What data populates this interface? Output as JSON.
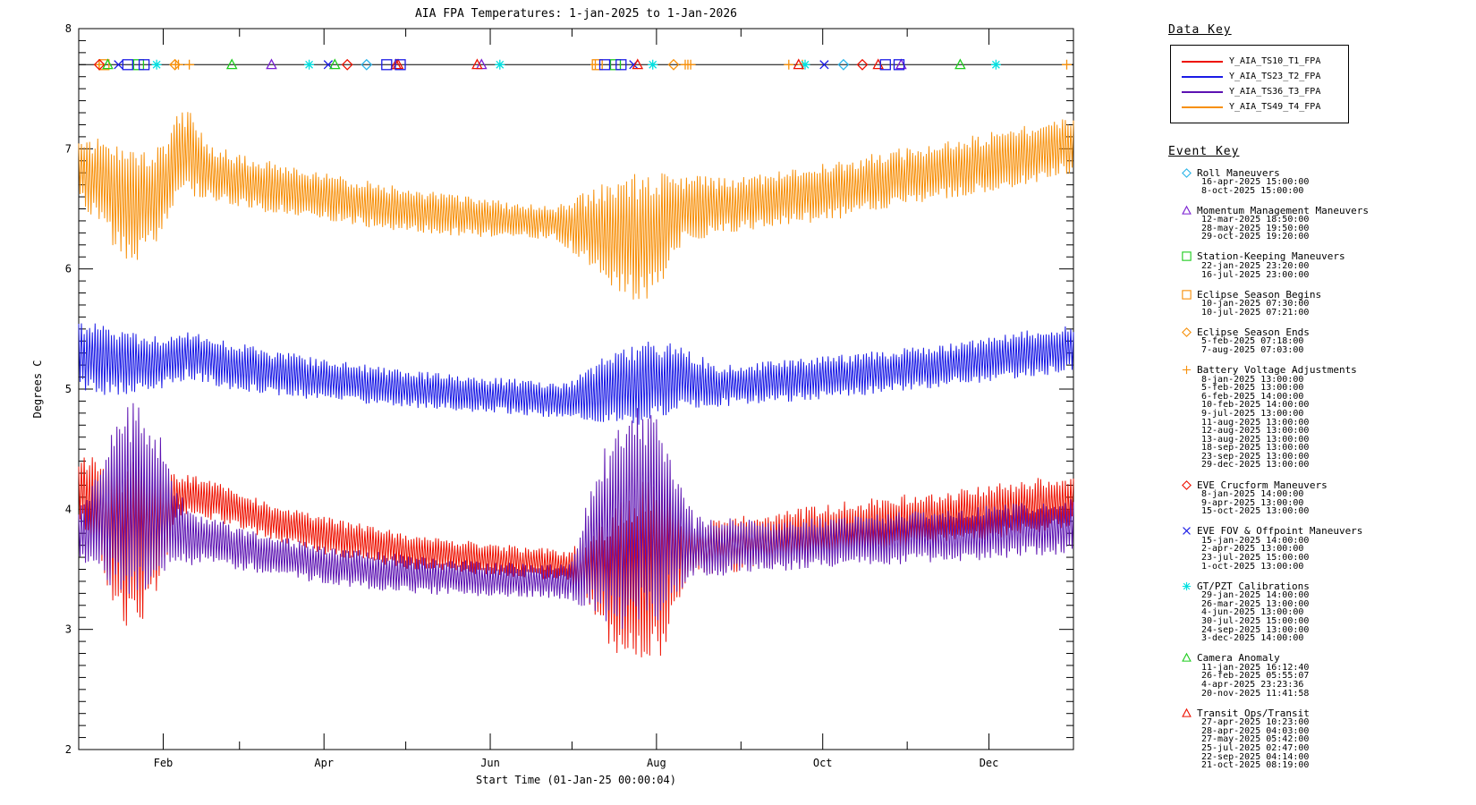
{
  "title": "AIA FPA Temperatures: 1-jan-2025 to 1-Jan-2026",
  "axes": {
    "ylabel": "Degrees C",
    "xlabel": "Start Time (01-Jan-25 00:00:04)",
    "y_ticks": [
      "2",
      "3",
      "4",
      "5",
      "6",
      "7",
      "8"
    ],
    "x_tick_labels": [
      "Feb",
      "Apr",
      "Jun",
      "Aug",
      "Oct",
      "Dec"
    ],
    "ylim": [
      2,
      8
    ]
  },
  "data_key": {
    "title": "Data Key",
    "entries": [
      {
        "label": "Y_AIA_TS10_T1_FPA",
        "color": "#ee1100"
      },
      {
        "label": "Y_AIA_TS23_T2_FPA",
        "color": "#1a1ae6"
      },
      {
        "label": "Y_AIA_TS36_T3_FPA",
        "color": "#5c12b2"
      },
      {
        "label": "Y_AIA_TS49_T4_FPA",
        "color": "#f7900a"
      }
    ]
  },
  "event_key": {
    "title": "Event Key",
    "events": [
      {
        "name": "Roll Maneuvers",
        "symbol": "diamond",
        "color": "#2ab4e8",
        "dates": [
          "16-apr-2025 15:00:00",
          "8-oct-2025 15:00:00"
        ]
      },
      {
        "name": "Momentum Management Maneuvers",
        "symbol": "triangle",
        "color": "#7a1fd2",
        "dates": [
          "12-mar-2025 18:50:00",
          "28-may-2025 19:50:00",
          "29-oct-2025 19:20:00"
        ]
      },
      {
        "name": "Station-Keeping Maneuvers",
        "symbol": "square",
        "color": "#1ecc1e",
        "dates": [
          "22-jan-2025 23:20:00",
          "16-jul-2025 23:00:00"
        ]
      },
      {
        "name": "Eclipse Season Begins",
        "symbol": "square",
        "color": "#f7900a",
        "dates": [
          "10-jan-2025 07:30:00",
          "10-jul-2025 07:21:00"
        ]
      },
      {
        "name": "Eclipse Season Ends",
        "symbol": "diamond",
        "color": "#f7900a",
        "dates": [
          "5-feb-2025 07:18:00",
          "7-aug-2025 07:03:00"
        ]
      },
      {
        "name": "Battery Voltage Adjustments",
        "symbol": "plus",
        "color": "#f7900a",
        "dates": [
          "8-jan-2025 13:00:00",
          "5-feb-2025 13:00:00",
          "6-feb-2025 14:00:00",
          "10-feb-2025 14:00:00",
          "9-jul-2025 13:00:00",
          "11-aug-2025 13:00:00",
          "12-aug-2025 13:00:00",
          "13-aug-2025 13:00:00",
          "18-sep-2025 13:00:00",
          "23-sep-2025 13:00:00",
          "29-dec-2025 13:00:00"
        ]
      },
      {
        "name": "EVE Crucform Maneuvers",
        "symbol": "diamond",
        "color": "#ee1100",
        "dates": [
          "8-jan-2025 14:00:00",
          "9-apr-2025 13:00:00",
          "15-oct-2025 13:00:00"
        ]
      },
      {
        "name": "EVE FOV & Offpoint Maneuvers",
        "symbol": "x",
        "color": "#1a1ae6",
        "dates": [
          "15-jan-2025 14:00:00",
          "2-apr-2025 13:00:00",
          "23-jul-2025 15:00:00",
          "1-oct-2025 13:00:00"
        ]
      },
      {
        "name": "GT/PZT Calibrations",
        "symbol": "asterisk",
        "color": "#00e0e0",
        "dates": [
          "29-jan-2025 14:00:00",
          "26-mar-2025 13:00:00",
          "4-jun-2025 13:00:00",
          "30-jul-2025 15:00:00",
          "24-sep-2025 13:00:00",
          "3-dec-2025 14:00:00"
        ]
      },
      {
        "name": "Camera Anomaly",
        "symbol": "triangle",
        "color": "#1ecc1e",
        "dates": [
          "11-jan-2025 16:12:40",
          "26-feb-2025 05:55:07",
          "4-apr-2025 23:23:36",
          "20-nov-2025 11:41:58"
        ]
      },
      {
        "name": "Transit Ops/Transit",
        "symbol": "triangle",
        "color": "#ee1100",
        "dates": [
          "27-apr-2025 10:23:00",
          "28-apr-2025 04:03:00",
          "27-may-2025 05:42:00",
          "25-jul-2025 02:47:00",
          "22-sep-2025 04:14:00",
          "21-oct-2025 08:19:00"
        ]
      }
    ],
    "unlabeled_markers": {
      "symbol": "square",
      "color": "#1a1ae6",
      "dates": [
        "19-jan-2025",
        "25-jan-2025",
        "24-apr-2025",
        "29-apr-2025",
        "13-jul-2025",
        "19-jul-2025",
        "24-oct-2025",
        "29-oct-2025"
      ]
    }
  },
  "chart_data": {
    "type": "line",
    "title": "AIA FPA Temperatures: 1-jan-2025 to 1-Jan-2026",
    "xlabel": "Start Time (01-Jan-25 00:00:04)",
    "ylabel": "Degrees C",
    "ylim": [
      2,
      8
    ],
    "x_range_days": 365,
    "x_month_tick_days": [
      31,
      59,
      90,
      120,
      151,
      181,
      212,
      243,
      273,
      304,
      334
    ],
    "x_labeled_tick_days": [
      31,
      90,
      151,
      212,
      273,
      334
    ],
    "grid": false,
    "legend_position": "right",
    "event_marker_line_y": 7.7,
    "oscillation_period_days": 1,
    "series": [
      {
        "name": "Y_AIA_TS10_T1_FPA",
        "color": "#ee1100",
        "envelope": [
          [
            0,
            3.9,
            4.45
          ],
          [
            8,
            3.55,
            4.45
          ],
          [
            14,
            3.1,
            4.4
          ],
          [
            20,
            2.95,
            4.4
          ],
          [
            27,
            3.2,
            4.35
          ],
          [
            33,
            3.6,
            4.3
          ],
          [
            36,
            3.95,
            4.3
          ],
          [
            50,
            3.9,
            4.25
          ],
          [
            70,
            3.75,
            4.05
          ],
          [
            90,
            3.62,
            3.95
          ],
          [
            120,
            3.5,
            3.8
          ],
          [
            150,
            3.45,
            3.72
          ],
          [
            180,
            3.4,
            3.66
          ],
          [
            191,
            3.0,
            3.9
          ],
          [
            198,
            2.75,
            4.1
          ],
          [
            207,
            2.6,
            4.3
          ],
          [
            214,
            2.75,
            4.35
          ],
          [
            219,
            3.2,
            4.05
          ],
          [
            226,
            3.45,
            3.9
          ],
          [
            255,
            3.5,
            3.98
          ],
          [
            285,
            3.6,
            4.08
          ],
          [
            315,
            3.7,
            4.15
          ],
          [
            345,
            3.78,
            4.24
          ],
          [
            365,
            3.85,
            4.3
          ]
        ]
      },
      {
        "name": "Y_AIA_TS23_T2_FPA",
        "color": "#1a1ae6",
        "envelope": [
          [
            0,
            4.95,
            5.6
          ],
          [
            15,
            4.95,
            5.5
          ],
          [
            30,
            5.0,
            5.45
          ],
          [
            40,
            5.08,
            5.5
          ],
          [
            55,
            5.0,
            5.4
          ],
          [
            90,
            4.9,
            5.25
          ],
          [
            120,
            4.85,
            5.16
          ],
          [
            150,
            4.8,
            5.1
          ],
          [
            180,
            4.75,
            5.06
          ],
          [
            193,
            4.7,
            5.28
          ],
          [
            207,
            4.68,
            5.4
          ],
          [
            219,
            4.82,
            5.38
          ],
          [
            235,
            4.85,
            5.2
          ],
          [
            265,
            4.9,
            5.26
          ],
          [
            295,
            4.96,
            5.32
          ],
          [
            325,
            5.04,
            5.4
          ],
          [
            350,
            5.1,
            5.5
          ],
          [
            365,
            5.14,
            5.56
          ]
        ]
      },
      {
        "name": "Y_AIA_TS36_T3_FPA",
        "color": "#5c12b2",
        "envelope": [
          [
            0,
            3.55,
            4.05
          ],
          [
            8,
            3.45,
            4.35
          ],
          [
            14,
            3.3,
            4.8
          ],
          [
            20,
            3.25,
            4.9
          ],
          [
            27,
            3.3,
            4.8
          ],
          [
            33,
            3.45,
            4.4
          ],
          [
            38,
            3.52,
            4.1
          ],
          [
            45,
            3.55,
            3.95
          ],
          [
            70,
            3.45,
            3.8
          ],
          [
            90,
            3.38,
            3.7
          ],
          [
            120,
            3.3,
            3.62
          ],
          [
            150,
            3.27,
            3.56
          ],
          [
            180,
            3.25,
            3.55
          ],
          [
            191,
            3.1,
            4.4
          ],
          [
            198,
            3.0,
            4.8
          ],
          [
            207,
            2.95,
            4.9
          ],
          [
            214,
            3.1,
            4.75
          ],
          [
            220,
            3.3,
            4.3
          ],
          [
            226,
            3.42,
            3.95
          ],
          [
            255,
            3.48,
            3.9
          ],
          [
            285,
            3.52,
            3.95
          ],
          [
            315,
            3.55,
            4.0
          ],
          [
            345,
            3.6,
            4.05
          ],
          [
            365,
            3.62,
            4.1
          ]
        ]
      },
      {
        "name": "Y_AIA_TS49_T4_FPA",
        "color": "#f7900a",
        "envelope": [
          [
            0,
            6.55,
            7.1
          ],
          [
            8,
            6.35,
            7.1
          ],
          [
            14,
            6.12,
            7.05
          ],
          [
            20,
            6.05,
            7.0
          ],
          [
            27,
            6.15,
            7.0
          ],
          [
            33,
            6.4,
            7.1
          ],
          [
            36,
            6.55,
            7.35
          ],
          [
            42,
            6.6,
            7.3
          ],
          [
            48,
            6.58,
            7.05
          ],
          [
            60,
            6.5,
            6.95
          ],
          [
            90,
            6.4,
            6.8
          ],
          [
            120,
            6.3,
            6.68
          ],
          [
            150,
            6.26,
            6.58
          ],
          [
            175,
            6.25,
            6.52
          ],
          [
            191,
            5.95,
            6.7
          ],
          [
            199,
            5.78,
            6.78
          ],
          [
            207,
            5.7,
            6.8
          ],
          [
            214,
            5.85,
            6.8
          ],
          [
            221,
            6.2,
            6.78
          ],
          [
            240,
            6.3,
            6.76
          ],
          [
            270,
            6.38,
            6.86
          ],
          [
            300,
            6.5,
            7.0
          ],
          [
            330,
            6.62,
            7.12
          ],
          [
            352,
            6.72,
            7.22
          ],
          [
            365,
            6.8,
            7.3
          ]
        ]
      }
    ]
  }
}
